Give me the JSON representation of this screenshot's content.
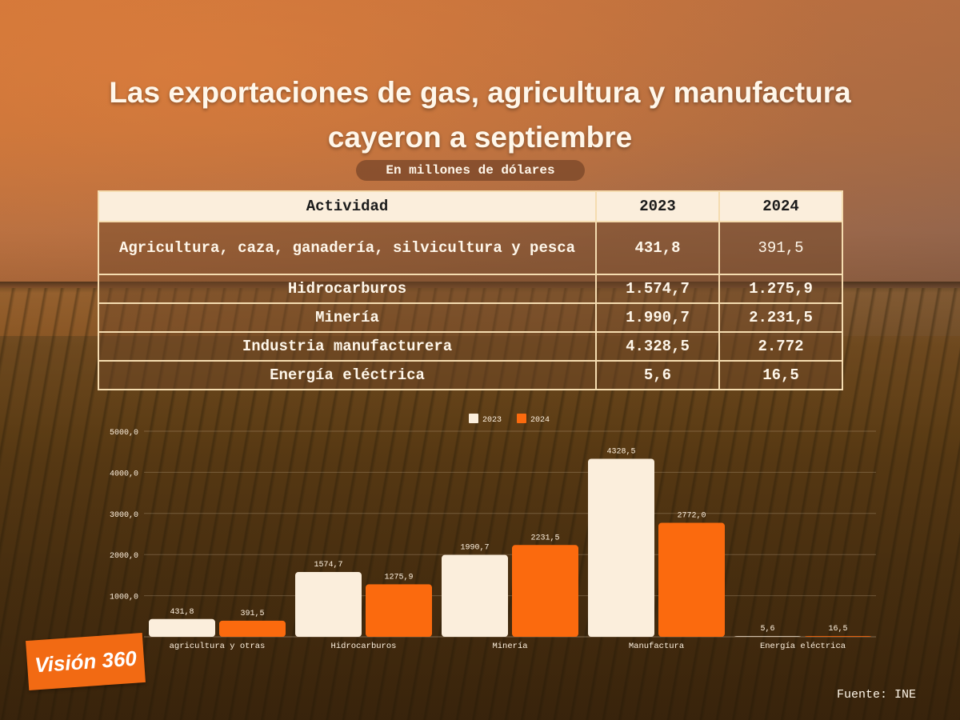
{
  "title": "Las exportaciones de gas, agricultura y manufactura cayeron a septiembre",
  "subtitle": "En millones de dólares",
  "table": {
    "headers": [
      "Actividad",
      "2023",
      "2024"
    ],
    "rows": [
      [
        "Agricultura, caza, ganadería, silvicultura y pesca",
        "431,8",
        "391,5"
      ],
      [
        "Hidrocarburos",
        "1.574,7",
        "1.275,9"
      ],
      [
        "Minería",
        "1.990,7",
        "2.231,5"
      ],
      [
        "Industria manufacturerа",
        "4.328,5",
        "2.772"
      ],
      [
        "Energía eléctrica",
        "5,6",
        "16,5"
      ]
    ]
  },
  "chart_data": {
    "type": "bar",
    "title": "",
    "xlabel": "",
    "ylabel": "",
    "categories": [
      "agricultura y otras",
      "Hidrocarburos",
      "Minería",
      "Manufactura",
      "Energía eléctrica"
    ],
    "series": [
      {
        "name": "2023",
        "color": "#fbeedc",
        "values": [
          431.8,
          1574.7,
          1990.7,
          4328.5,
          5.6
        ],
        "labels": [
          "431,8",
          "1574,7",
          "1990,7",
          "4328,5",
          "5,6"
        ]
      },
      {
        "name": "2024",
        "color": "#fb6a0e",
        "values": [
          391.5,
          1275.9,
          2231.5,
          2772.0,
          16.5
        ],
        "labels": [
          "391,5",
          "1275,9",
          "2231,5",
          "2772,0",
          "16,5"
        ]
      }
    ],
    "ylim": [
      0,
      5000
    ],
    "yticks": [
      "1000,0",
      "2000,0",
      "3000,0",
      "4000,0",
      "5000,0"
    ],
    "ytick_values": [
      1000,
      2000,
      3000,
      4000,
      5000
    ],
    "grid": true,
    "legend": "top-center"
  },
  "logo_text": "Visión 360",
  "source": "Fuente: INE"
}
